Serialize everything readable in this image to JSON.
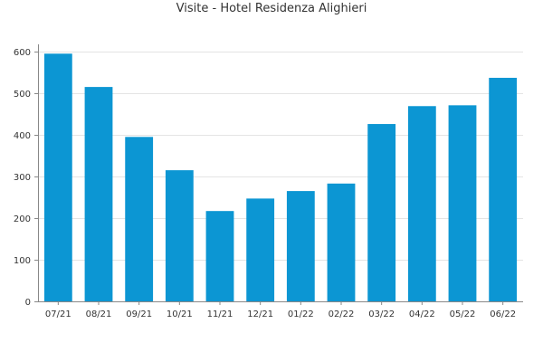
{
  "chart_data": {
    "type": "bar",
    "title": "Visite - Hotel Residenza Alighieri",
    "xlabel": "",
    "ylabel": "",
    "categories": [
      "07/21",
      "08/21",
      "09/21",
      "10/21",
      "11/21",
      "12/21",
      "01/22",
      "02/22",
      "03/22",
      "04/22",
      "05/22",
      "06/22"
    ],
    "values": [
      595,
      515,
      395,
      315,
      217,
      247,
      265,
      283,
      426,
      469,
      471,
      537
    ],
    "ylim": [
      0,
      600
    ],
    "yticks": [
      0,
      100,
      200,
      300,
      400,
      500,
      600
    ],
    "grid": true,
    "legend": "none",
    "colors": {
      "bar": "#0c96d3",
      "grid": "#e4e4e4",
      "axis": "#888888",
      "text": "#333333"
    }
  }
}
